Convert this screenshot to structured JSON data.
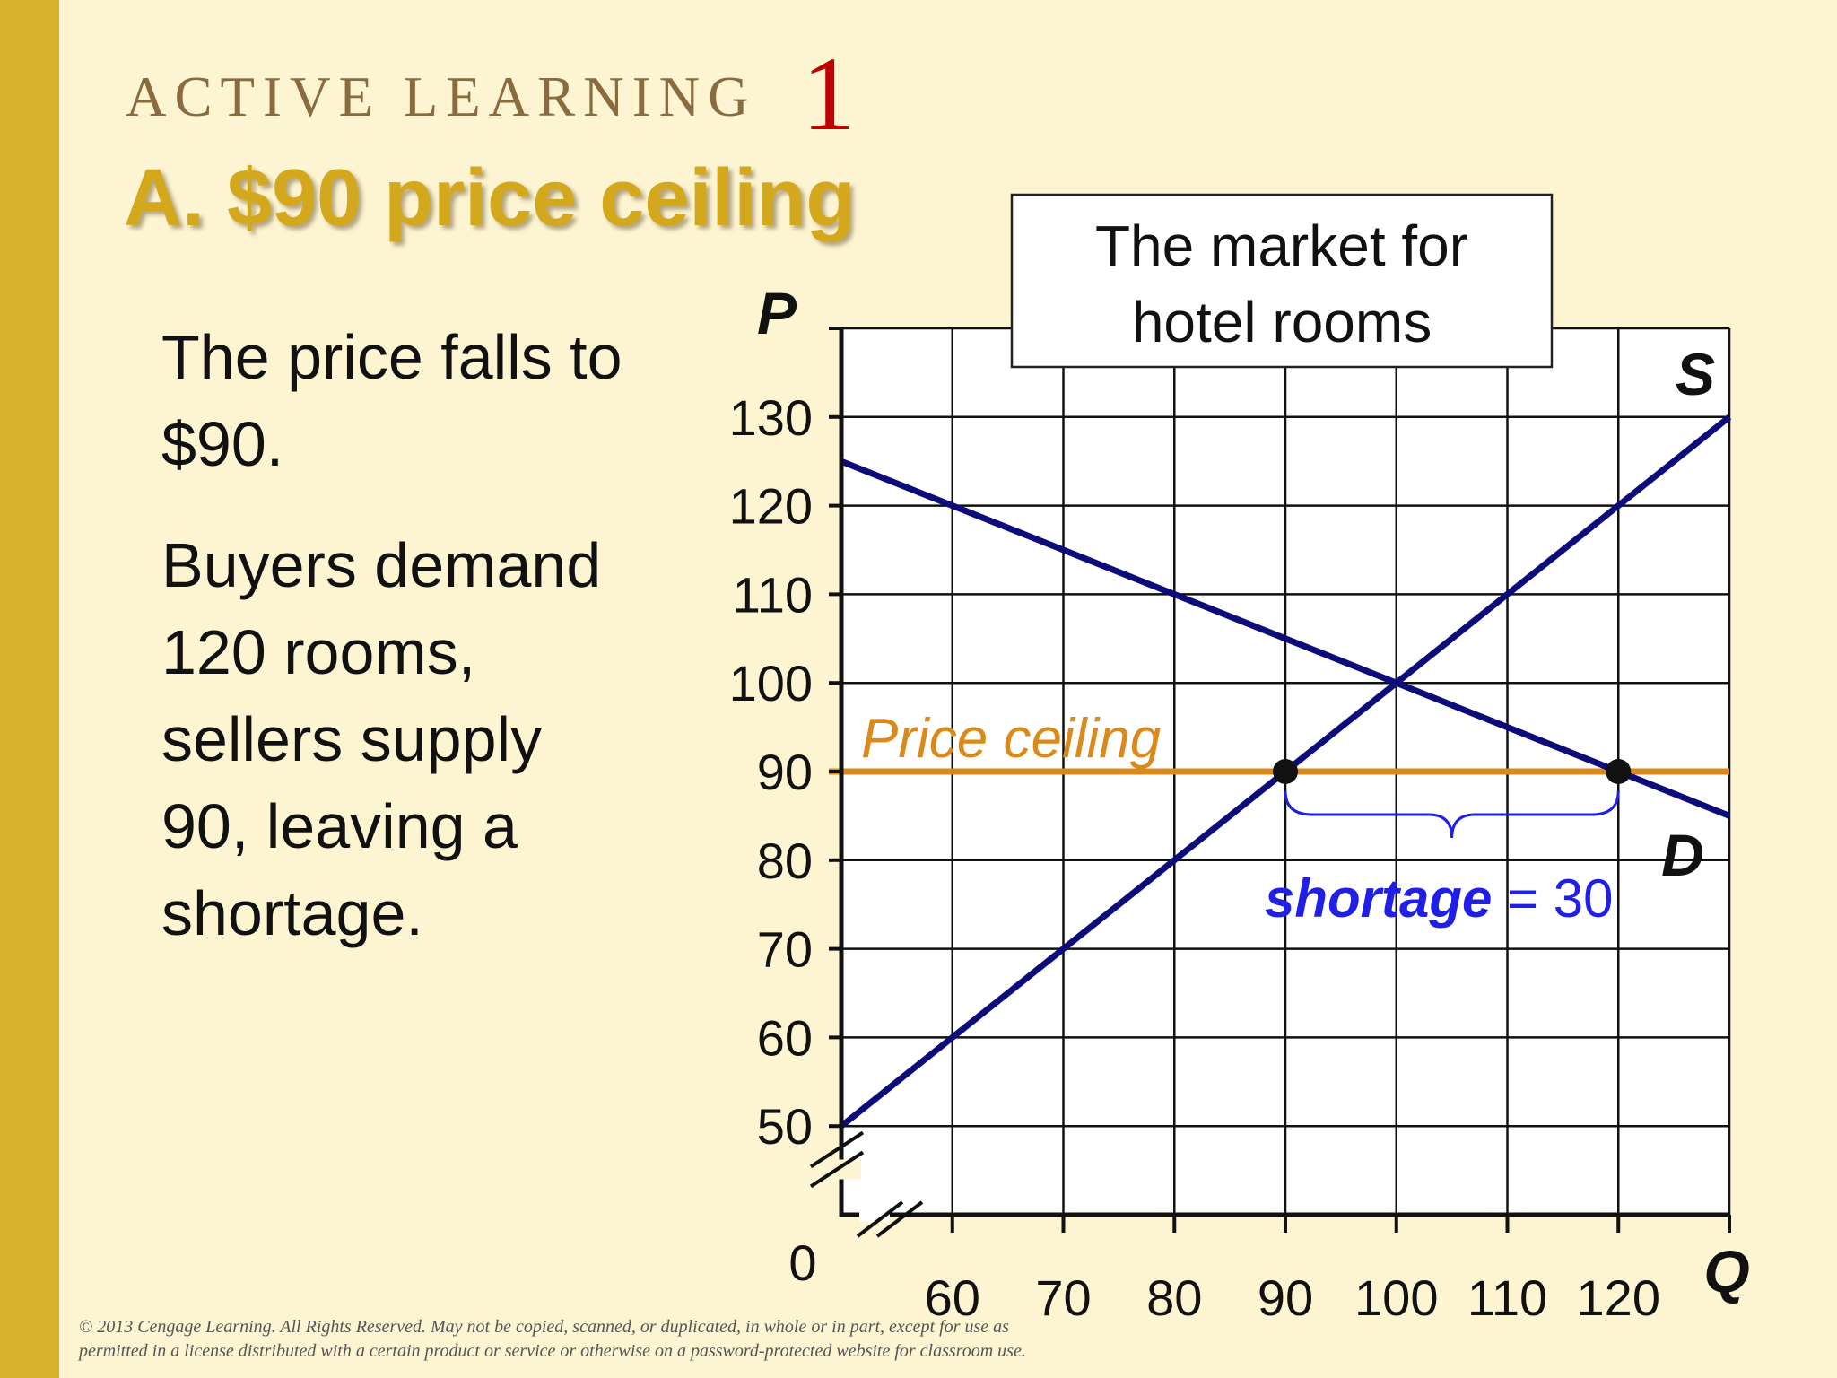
{
  "slide": {
    "kicker": "ACTIVE LEARNING",
    "kicker_number": "1",
    "title": "A.  $90 price ceiling",
    "paragraphs": [
      "The price falls to $90.",
      "Buyers demand 120 rooms, sellers supply 90, leaving a shortage."
    ],
    "footer_line1": "© 2013 Cengage Learning. All Rights Reserved. May not be copied, scanned, or duplicated, in whole or in part, except for use as",
    "footer_line2": "permitted in a license distributed with a certain product or service or otherwise on a password-protected website for classroom use."
  },
  "colors": {
    "background": "#fdf4d2",
    "accent_bar": "#d6b32b",
    "title": "#d4a81c",
    "kicker": "#8a6a3f",
    "kicker_number": "#c00000",
    "curves": "#0c0c7a",
    "ceiling": "#d98a1a",
    "shortage": "#1f1fe6"
  },
  "chart_data": {
    "type": "line",
    "title": "The market for hotel rooms",
    "xlabel": "Q",
    "ylabel": "P",
    "origin_label": "0",
    "xlim": [
      50,
      130
    ],
    "ylim": [
      40,
      140
    ],
    "x_ticks": [
      60,
      70,
      80,
      90,
      100,
      110,
      120
    ],
    "y_ticks": [
      50,
      60,
      70,
      80,
      90,
      100,
      110,
      120,
      130
    ],
    "grid": true,
    "series": [
      {
        "name": "S",
        "points": [
          [
            50,
            50
          ],
          [
            130,
            130
          ]
        ]
      },
      {
        "name": "D",
        "points": [
          [
            50,
            125
          ],
          [
            130,
            85
          ]
        ]
      }
    ],
    "price_ceiling": {
      "label": "Price ceiling",
      "value": 90
    },
    "points": [
      [
        90,
        90
      ],
      [
        120,
        90
      ]
    ],
    "shortage": {
      "label": "shortage",
      "equals": "= 30",
      "from": 90,
      "to": 120
    }
  }
}
